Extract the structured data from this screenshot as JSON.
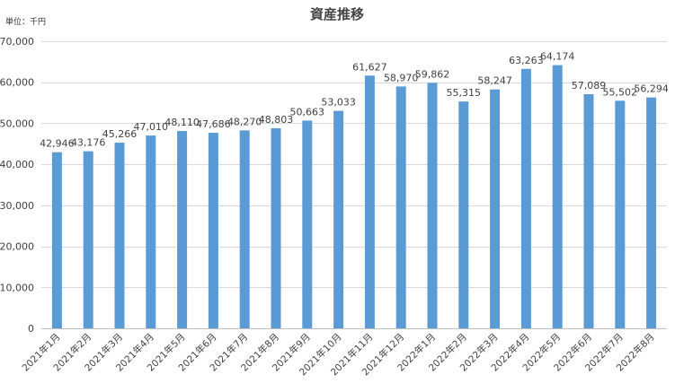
{
  "chart_data": {
    "type": "bar",
    "title": "資産推移",
    "unit_label": "単位：千円",
    "xlabel": "",
    "ylabel": "",
    "ylim": [
      0,
      70000
    ],
    "yticks": [
      0,
      10000,
      20000,
      30000,
      40000,
      50000,
      60000,
      70000
    ],
    "ytick_labels": [
      "0",
      "10,000",
      "20,000",
      "30,000",
      "40,000",
      "50,000",
      "60,000",
      "70,000"
    ],
    "grid": true,
    "legend": "none",
    "bar_color": "#5B9BD5",
    "categories": [
      "2021年1月",
      "2021年2月",
      "2021年3月",
      "2021年4月",
      "2021年5月",
      "2021年6月",
      "2021年7月",
      "2021年8月",
      "2021年9月",
      "2021年10月",
      "2021年11月",
      "2021年12月",
      "2022年1月",
      "2022年2月",
      "2022年3月",
      "2022年4月",
      "2022年5月",
      "2022年6月",
      "2022年7月",
      "2022年8月"
    ],
    "values": [
      42946,
      43176,
      45266,
      47010,
      48110,
      47686,
      48270,
      48803,
      50663,
      53033,
      61627,
      58970,
      59862,
      55315,
      58247,
      63263,
      64174,
      57089,
      55502,
      56294
    ],
    "value_labels": [
      "42,946",
      "43,176",
      "45,266",
      "47,010",
      "48,110",
      "47,686",
      "48,270",
      "48,803",
      "50,663",
      "53,033",
      "61,627",
      "58,970",
      "59,862",
      "55,315",
      "58,247",
      "63,263",
      "64,174",
      "57,089",
      "55,502",
      "56,294"
    ]
  }
}
